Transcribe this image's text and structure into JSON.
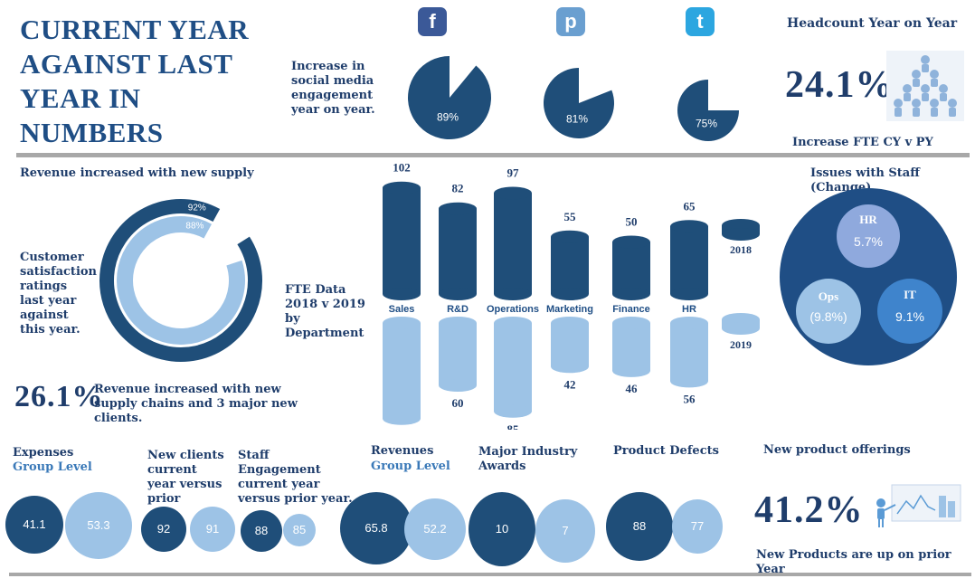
{
  "title": "CURRENT YEAR AGAINST LAST YEAR IN NUMBERS",
  "social": {
    "caption": "Increase in social media engagement year on year.",
    "icons": [
      {
        "icon": "facebook-icon",
        "glyph": "f",
        "color": "#3b5998"
      },
      {
        "icon": "pinterest-icon",
        "glyph": "p",
        "color": "#6a9fd0"
      },
      {
        "icon": "twitter-icon",
        "glyph": "t",
        "color": "#2ca6e0"
      }
    ]
  },
  "headcount": {
    "title": "Headcount Year on Year",
    "value": "24.1%",
    "caption": "Increase FTE CY v PY"
  },
  "revenue_supply": {
    "title": "Revenue increased with new supply",
    "satisfaction_caption": "Customer satisfaction ratings last year against this year.",
    "value": "26.1%",
    "caption": "Revenue increased with new supply chains and 3 major new clients."
  },
  "fte": {
    "caption": "FTE Data 2018 v 2019 by Department",
    "legend_2018": "2018",
    "legend_2019": "2019"
  },
  "staff_issues": {
    "title": "Issues with Staff (Change)",
    "hr_label": "HR",
    "hr_value": "5.7%",
    "ops_label": "Ops",
    "ops_value": "(9.8%)",
    "it_label": "IT",
    "it_value": "9.1%"
  },
  "kpis": {
    "expenses": {
      "line1": "Expenses",
      "line2": "Group Level",
      "cy": "41.1",
      "py": "53.3"
    },
    "new_clients": {
      "caption": "New clients current year versus prior",
      "cy": "92",
      "py": "91"
    },
    "staff_engagement": {
      "caption": "Staff Engagement current year versus prior year.",
      "cy": "88",
      "py": "85"
    },
    "revenues": {
      "line1": "Revenues",
      "line2": "Group Level",
      "cy": "65.8",
      "py": "52.2"
    },
    "awards": {
      "caption": "Major Industry Awards",
      "cy": "10",
      "py": "7"
    },
    "defects": {
      "caption": "Product Defects",
      "cy": "88",
      "py": "77"
    }
  },
  "new_products": {
    "title": "New product offerings",
    "value": "41.2%",
    "caption": "New Products are up on prior Year"
  },
  "colors": {
    "dark": "#1f4e79",
    "light": "#9dc3e6",
    "mid": "#5b9bd5",
    "circle": "#1f4e85"
  },
  "chart_data": [
    {
      "type": "pie",
      "title": "Increase in social media engagement year on year",
      "categories": [
        "Facebook",
        "Pinterest",
        "Twitter"
      ],
      "values": [
        89,
        81,
        75
      ],
      "labels": [
        "89%",
        "81%",
        "75%"
      ]
    },
    {
      "type": "bar",
      "title": "FTE Data 2018 v 2019 by Department",
      "categories": [
        "Sales",
        "R&D",
        "Operations",
        "Marketing",
        "Finance",
        "HR"
      ],
      "series": [
        {
          "name": "2018",
          "values": [
            102,
            82,
            97,
            55,
            50,
            65
          ]
        },
        {
          "name": "2019",
          "values": [
            92,
            60,
            85,
            42,
            46,
            56
          ]
        }
      ]
    },
    {
      "type": "pie",
      "title": "Customer satisfaction ratings last year against this year",
      "series": [
        {
          "name": "Last year",
          "values": [
            92
          ],
          "label": "92%"
        },
        {
          "name": "This year",
          "values": [
            88
          ],
          "label": "88%"
        }
      ]
    }
  ]
}
